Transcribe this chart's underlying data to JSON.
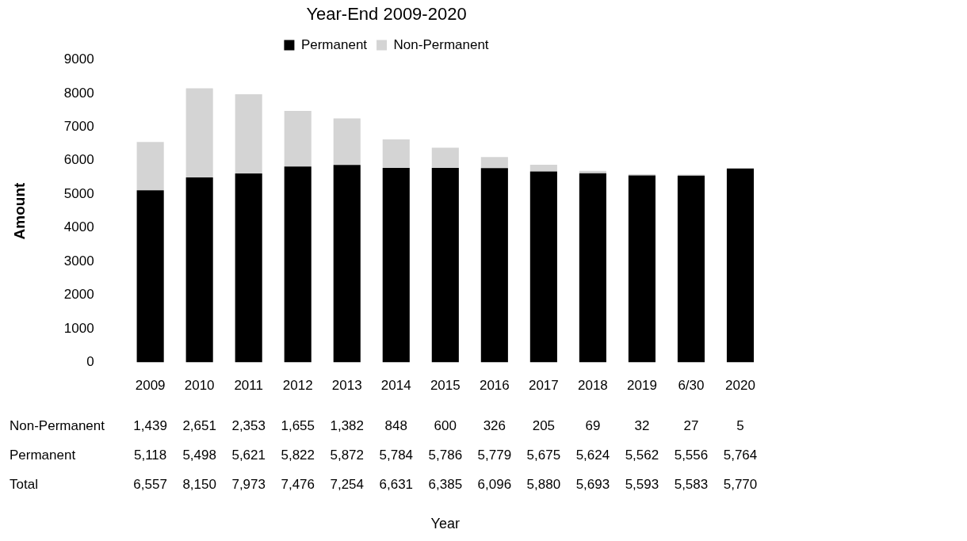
{
  "chart_data": {
    "type": "bar",
    "title": "Year-End 2009-2020",
    "ylabel": "Amount",
    "categories": [
      "2009",
      "2010",
      "2011",
      "2012",
      "2013",
      "2014",
      "2015",
      "2016",
      "2017",
      "2018",
      "2019",
      "6/30",
      "2020"
    ],
    "series": [
      {
        "name": "Permanent",
        "color": "#000000",
        "values": [
          5118,
          5498,
          5621,
          5822,
          5872,
          5784,
          5786,
          5779,
          5675,
          5624,
          5562,
          5556,
          5764
        ],
        "value_labels": [
          "5,118",
          "5,498",
          "5,621",
          "5,822",
          "5,872",
          "5,784",
          "5,786",
          "5,779",
          "5,675",
          "5,624",
          "5,562",
          "5,556",
          "5,764"
        ]
      },
      {
        "name": "Non-Permanent",
        "color": "#d4d4d4",
        "values": [
          1439,
          2651,
          2353,
          1655,
          1382,
          848,
          600,
          326,
          205,
          69,
          32,
          27,
          5
        ],
        "value_labels": [
          "1,439",
          "2,651",
          "2,353",
          "1,655",
          "1,382",
          "848",
          "600",
          "326",
          "205",
          "69",
          "32",
          "27",
          "5"
        ]
      }
    ],
    "stacked": true,
    "ylim": [
      0,
      9000
    ],
    "yticks": [
      0,
      1000,
      2000,
      3000,
      4000,
      5000,
      6000,
      7000,
      8000,
      9000
    ],
    "grid": false,
    "legend": "top",
    "annotations": [
      "Total",
      "6,557",
      "8,150",
      "7,973",
      "7,476",
      "7,254",
      "6,631",
      "6,385",
      "6,096",
      "5,880",
      "5,693",
      "5,593",
      "5,583",
      "5,770",
      "Year"
    ]
  }
}
